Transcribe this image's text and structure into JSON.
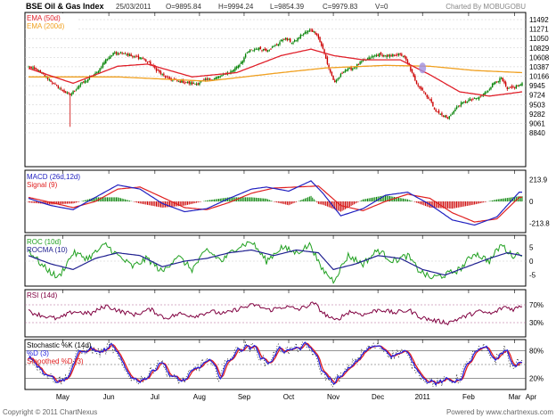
{
  "header": {
    "title": "BSE Oil & Gas Index",
    "date": "25/03/2011",
    "open": "O=9895.84",
    "high": "H=9994.24",
    "low": "L=9854.39",
    "close": "C=9979.83",
    "volume": "V=0",
    "credit": "Charted By MOBUGOBU"
  },
  "footer": {
    "copyright": "Copyright © 2011 ChartNexus",
    "powered": "Powered by www.chartnexus.com"
  },
  "colors": {
    "frame": "#000000",
    "grid": "#c8c8c8",
    "candle_up": "#008000",
    "candle_down": "#cc0000",
    "ema50": "#e0202a",
    "ema200": "#f0a020",
    "macd": "#2020c0",
    "signal": "#e02020",
    "roc": "#20a020",
    "rocma": "#202090",
    "rsi": "#800040",
    "stoch_k": "#202020",
    "stoch_d": "#2020e0",
    "stoch_sd": "#e02020"
  },
  "chart_data": [
    {
      "type": "candlestick",
      "title": "BSE Oil & Gas Index",
      "legend": [
        "EMA (50d)",
        "EMA (200d)"
      ],
      "x_tick_labels": [
        "May",
        "Jun",
        "Jul",
        "Aug",
        "Sep",
        "Oct",
        "Nov",
        "Dec",
        "2011",
        "Feb",
        "Mar",
        "Apr"
      ],
      "y_tick_labels": [
        "11492",
        "11271",
        "11050",
        "10829",
        "10608",
        "10387",
        "10166",
        "9945",
        "9724",
        "9503",
        "9282",
        "9061",
        "8840"
      ],
      "ylim": [
        8840,
        11492
      ],
      "price_anchors": [
        [
          0,
          10380
        ],
        [
          6,
          10300
        ],
        [
          12,
          10150
        ],
        [
          18,
          9950
        ],
        [
          24,
          9800
        ],
        [
          28,
          9720
        ],
        [
          34,
          9950
        ],
        [
          40,
          10100
        ],
        [
          46,
          10250
        ],
        [
          52,
          10550
        ],
        [
          58,
          10720
        ],
        [
          64,
          10720
        ],
        [
          70,
          10620
        ],
        [
          76,
          10600
        ],
        [
          82,
          10450
        ],
        [
          88,
          10250
        ],
        [
          94,
          10100
        ],
        [
          100,
          10050
        ],
        [
          106,
          10020
        ],
        [
          112,
          9980
        ],
        [
          118,
          10060
        ],
        [
          124,
          10100
        ],
        [
          130,
          10180
        ],
        [
          136,
          10270
        ],
        [
          142,
          10450
        ],
        [
          148,
          10750
        ],
        [
          154,
          10820
        ],
        [
          160,
          10780
        ],
        [
          166,
          10880
        ],
        [
          172,
          11050
        ],
        [
          178,
          10950
        ],
        [
          184,
          11150
        ],
        [
          190,
          11250
        ],
        [
          194,
          11150
        ],
        [
          198,
          10800
        ],
        [
          202,
          10350
        ],
        [
          206,
          10000
        ],
        [
          212,
          10300
        ],
        [
          218,
          10350
        ],
        [
          224,
          10500
        ],
        [
          230,
          10600
        ],
        [
          236,
          10680
        ],
        [
          242,
          10630
        ],
        [
          248,
          10680
        ],
        [
          252,
          10650
        ],
        [
          256,
          10400
        ],
        [
          260,
          10050
        ],
        [
          266,
          9800
        ],
        [
          270,
          9600
        ],
        [
          274,
          9350
        ],
        [
          278,
          9250
        ],
        [
          282,
          9180
        ],
        [
          286,
          9350
        ],
        [
          290,
          9500
        ],
        [
          296,
          9600
        ],
        [
          302,
          9650
        ],
        [
          308,
          9800
        ],
        [
          314,
          10050
        ],
        [
          318,
          10100
        ],
        [
          322,
          9850
        ],
        [
          328,
          9930
        ],
        [
          332,
          9980
        ]
      ],
      "ema50_anchors": [
        [
          0,
          10350
        ],
        [
          30,
          10000
        ],
        [
          60,
          10400
        ],
        [
          80,
          10450
        ],
        [
          110,
          10150
        ],
        [
          140,
          10250
        ],
        [
          170,
          10650
        ],
        [
          190,
          10800
        ],
        [
          205,
          10650
        ],
        [
          225,
          10550
        ],
        [
          250,
          10550
        ],
        [
          270,
          10200
        ],
        [
          290,
          9800
        ],
        [
          310,
          9700
        ],
        [
          332,
          9800
        ]
      ],
      "ema200_anchors": [
        [
          0,
          10150
        ],
        [
          60,
          10150
        ],
        [
          120,
          10050
        ],
        [
          170,
          10250
        ],
        [
          200,
          10360
        ],
        [
          240,
          10420
        ],
        [
          270,
          10400
        ],
        [
          300,
          10300
        ],
        [
          332,
          10250
        ]
      ],
      "marked_point": [
        265,
        10360
      ]
    },
    {
      "type": "line",
      "title": "MACD (26d,12d)",
      "legend": [
        "MACD (26d,12d)",
        "Signal (9)"
      ],
      "y_tick_labels": [
        "213.9",
        "0",
        "-213.8"
      ],
      "ylim": [
        -260,
        260
      ],
      "macd_anchors": [
        [
          0,
          30
        ],
        [
          15,
          -40
        ],
        [
          30,
          -80
        ],
        [
          45,
          40
        ],
        [
          60,
          160
        ],
        [
          75,
          120
        ],
        [
          90,
          -20
        ],
        [
          105,
          -100
        ],
        [
          120,
          -70
        ],
        [
          135,
          30
        ],
        [
          150,
          120
        ],
        [
          160,
          140
        ],
        [
          175,
          100
        ],
        [
          190,
          200
        ],
        [
          198,
          80
        ],
        [
          210,
          -140
        ],
        [
          225,
          -70
        ],
        [
          240,
          60
        ],
        [
          255,
          90
        ],
        [
          270,
          -30
        ],
        [
          285,
          -180
        ],
        [
          300,
          -230
        ],
        [
          315,
          -150
        ],
        [
          330,
          90
        ]
      ],
      "signal_anchors": [
        [
          0,
          40
        ],
        [
          15,
          -10
        ],
        [
          30,
          -60
        ],
        [
          45,
          0
        ],
        [
          60,
          120
        ],
        [
          75,
          140
        ],
        [
          90,
          40
        ],
        [
          105,
          -60
        ],
        [
          120,
          -80
        ],
        [
          135,
          -10
        ],
        [
          150,
          80
        ],
        [
          165,
          130
        ],
        [
          180,
          140
        ],
        [
          195,
          150
        ],
        [
          210,
          -40
        ],
        [
          225,
          -90
        ],
        [
          240,
          0
        ],
        [
          255,
          70
        ],
        [
          270,
          30
        ],
        [
          285,
          -110
        ],
        [
          300,
          -200
        ],
        [
          315,
          -170
        ],
        [
          330,
          40
        ]
      ]
    },
    {
      "type": "line",
      "title": "ROC (10d)",
      "legend": [
        "ROC (10d)",
        "ROCMA (10)"
      ],
      "y_tick_labels": [
        "5",
        "0",
        "-5"
      ],
      "ylim": [
        -8,
        8
      ],
      "roc_anchors": [
        [
          0,
          4
        ],
        [
          10,
          -2
        ],
        [
          20,
          -6
        ],
        [
          30,
          3
        ],
        [
          40,
          1
        ],
        [
          52,
          6
        ],
        [
          60,
          2
        ],
        [
          70,
          -2
        ],
        [
          80,
          1
        ],
        [
          90,
          -4
        ],
        [
          100,
          2
        ],
        [
          110,
          -3
        ],
        [
          120,
          4
        ],
        [
          130,
          0
        ],
        [
          140,
          5
        ],
        [
          150,
          7
        ],
        [
          160,
          0
        ],
        [
          170,
          5
        ],
        [
          180,
          3
        ],
        [
          190,
          6
        ],
        [
          196,
          -2
        ],
        [
          205,
          -7
        ],
        [
          215,
          2
        ],
        [
          225,
          -1
        ],
        [
          235,
          4
        ],
        [
          245,
          0
        ],
        [
          255,
          2
        ],
        [
          262,
          -3
        ],
        [
          270,
          -6
        ],
        [
          280,
          -5
        ],
        [
          290,
          -3
        ],
        [
          300,
          3
        ],
        [
          310,
          0
        ],
        [
          318,
          6
        ],
        [
          325,
          2
        ],
        [
          332,
          3
        ]
      ],
      "rocma_anchors": [
        [
          0,
          2
        ],
        [
          15,
          -1
        ],
        [
          30,
          -3
        ],
        [
          45,
          1
        ],
        [
          60,
          3
        ],
        [
          75,
          2
        ],
        [
          90,
          -2
        ],
        [
          105,
          0
        ],
        [
          120,
          1
        ],
        [
          135,
          3
        ],
        [
          150,
          4
        ],
        [
          165,
          2
        ],
        [
          180,
          4
        ],
        [
          195,
          3
        ],
        [
          205,
          -3
        ],
        [
          220,
          -1
        ],
        [
          235,
          2
        ],
        [
          250,
          1
        ],
        [
          265,
          -3
        ],
        [
          280,
          -5
        ],
        [
          295,
          -2
        ],
        [
          310,
          1
        ],
        [
          322,
          3
        ],
        [
          332,
          2
        ]
      ]
    },
    {
      "type": "line",
      "title": "RSI (14d)",
      "legend": [
        "RSI (14d)"
      ],
      "y_tick_labels": [
        "70%",
        "30%"
      ],
      "ylim": [
        0,
        100
      ],
      "reference_lines": [
        70,
        30
      ],
      "rsi_anchors": [
        [
          0,
          55
        ],
        [
          10,
          45
        ],
        [
          20,
          38
        ],
        [
          30,
          55
        ],
        [
          42,
          50
        ],
        [
          52,
          68
        ],
        [
          62,
          55
        ],
        [
          72,
          48
        ],
        [
          82,
          60
        ],
        [
          92,
          40
        ],
        [
          102,
          50
        ],
        [
          112,
          45
        ],
        [
          122,
          55
        ],
        [
          132,
          50
        ],
        [
          142,
          62
        ],
        [
          152,
          70
        ],
        [
          162,
          58
        ],
        [
          172,
          66
        ],
        [
          182,
          60
        ],
        [
          192,
          74
        ],
        [
          198,
          52
        ],
        [
          206,
          34
        ],
        [
          216,
          55
        ],
        [
          226,
          48
        ],
        [
          236,
          60
        ],
        [
          246,
          52
        ],
        [
          256,
          58
        ],
        [
          264,
          42
        ],
        [
          272,
          35
        ],
        [
          282,
          30
        ],
        [
          292,
          42
        ],
        [
          302,
          55
        ],
        [
          312,
          50
        ],
        [
          320,
          66
        ],
        [
          326,
          60
        ],
        [
          332,
          68
        ]
      ]
    },
    {
      "type": "line",
      "title": "Stochastic %K (14d)",
      "legend": [
        "Stochastic %K (14d)",
        "%D (3)",
        "Smoothed %D (3)"
      ],
      "x_tick_labels": [
        "May",
        "Jun",
        "Jul",
        "Aug",
        "Sep",
        "Oct",
        "Nov",
        "Dec",
        "2011",
        "Feb",
        "Mar",
        "Apr"
      ],
      "y_tick_labels": [
        "80%",
        "20%"
      ],
      "ylim": [
        0,
        100
      ],
      "reference_lines": [
        80,
        50,
        20
      ],
      "stoch_anchors": [
        [
          0,
          70
        ],
        [
          8,
          40
        ],
        [
          16,
          20
        ],
        [
          24,
          15
        ],
        [
          32,
          70
        ],
        [
          40,
          85
        ],
        [
          48,
          75
        ],
        [
          56,
          90
        ],
        [
          64,
          40
        ],
        [
          72,
          15
        ],
        [
          80,
          25
        ],
        [
          88,
          60
        ],
        [
          96,
          20
        ],
        [
          104,
          15
        ],
        [
          112,
          40
        ],
        [
          120,
          60
        ],
        [
          128,
          25
        ],
        [
          136,
          70
        ],
        [
          144,
          90
        ],
        [
          152,
          85
        ],
        [
          160,
          50
        ],
        [
          168,
          85
        ],
        [
          176,
          80
        ],
        [
          184,
          90
        ],
        [
          190,
          85
        ],
        [
          196,
          40
        ],
        [
          204,
          10
        ],
        [
          212,
          30
        ],
        [
          220,
          60
        ],
        [
          228,
          85
        ],
        [
          236,
          90
        ],
        [
          244,
          70
        ],
        [
          252,
          80
        ],
        [
          258,
          50
        ],
        [
          266,
          20
        ],
        [
          274,
          10
        ],
        [
          282,
          15
        ],
        [
          290,
          20
        ],
        [
          298,
          70
        ],
        [
          306,
          85
        ],
        [
          314,
          60
        ],
        [
          320,
          85
        ],
        [
          326,
          40
        ],
        [
          332,
          65
        ]
      ]
    }
  ]
}
